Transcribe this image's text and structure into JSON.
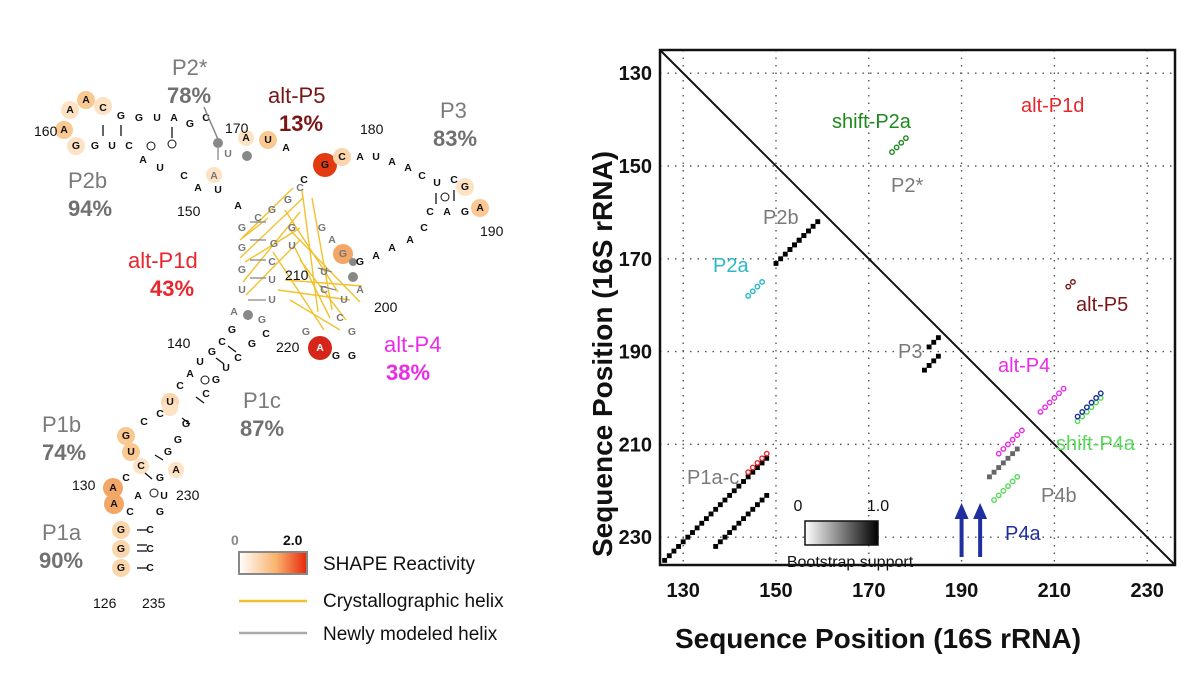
{
  "colors": {
    "gray_label": "#7a7a7a",
    "dark_gray_pct": "#707070",
    "alt_p1d": "#e8262b",
    "alt_p5": "#7a1515",
    "alt_p4": "#ea2be8",
    "shift_p2a": "#1d8a1d",
    "p2a": "#28b8c8",
    "shift_p4a": "#5ad85a",
    "p4a": "#1f2fa0",
    "crystal_helix": "#f2c12e",
    "new_helix": "#aaaaaa",
    "shape_low": "#ffffff",
    "shape_high": "#e8260b"
  },
  "structure": {
    "helix_labels": [
      {
        "name": "P2*",
        "pct": "78%",
        "color": "#7a7a7a"
      },
      {
        "name": "alt-P5",
        "pct": "13%",
        "color": "#7a1515"
      },
      {
        "name": "P3",
        "pct": "83%",
        "color": "#7a7a7a"
      },
      {
        "name": "P2b",
        "pct": "94%",
        "color": "#7a7a7a"
      },
      {
        "name": "alt-P1d",
        "pct": "43%",
        "color": "#e8262b"
      },
      {
        "name": "alt-P4",
        "pct": "38%",
        "color": "#ea2be8"
      },
      {
        "name": "P1c",
        "pct": "87%",
        "color": "#7a7a7a"
      },
      {
        "name": "P1b",
        "pct": "74%",
        "color": "#7a7a7a"
      },
      {
        "name": "P1a",
        "pct": "90%",
        "color": "#7a7a7a"
      }
    ],
    "position_numbers": [
      "160",
      "170",
      "180",
      "150",
      "190",
      "210",
      "200",
      "140",
      "220",
      "130",
      "230",
      "126",
      "235"
    ]
  },
  "legend": {
    "scale_min": "0",
    "scale_max": "2.0",
    "shape_label": "SHAPE Reactivity",
    "crystal_label": "Crystallographic helix",
    "new_label": "Newly modeled helix"
  },
  "chart_data": {
    "type": "heatmap",
    "title": "",
    "xlabel": "Sequence Position (16S rRNA)",
    "ylabel": "Sequence Position (16S rRNA)",
    "x_ticks": [
      "130",
      "150",
      "170",
      "190",
      "210",
      "230"
    ],
    "y_ticks": [
      "130",
      "150",
      "170",
      "190",
      "210",
      "230"
    ],
    "xlim": [
      125,
      236
    ],
    "ylim": [
      125,
      236
    ],
    "y_inverted": true,
    "grid": true,
    "colorbar": {
      "label": "Bootstrap support",
      "min": "0",
      "max": "1.0"
    },
    "helices": [
      {
        "name": "P1a-c",
        "i_start": 126,
        "j_start": 235,
        "length": 23,
        "support": 1.0,
        "side": "lower",
        "label_color": "#7a7a7a"
      },
      {
        "name": "P2b",
        "i_start": 150,
        "j_start": 171,
        "length": 10,
        "support": 1.0,
        "side": "lower",
        "label_color": "#7a7a7a"
      },
      {
        "name": "P2*",
        "i_start": 164,
        "j_start": 157,
        "length": 5,
        "support": 1.0,
        "side": "upper",
        "label_color": "#7a7a7a"
      },
      {
        "name": "P3",
        "i_start": 182,
        "j_start": 194,
        "length": 4,
        "support": 1.0,
        "side": "lower",
        "label_color": "#7a7a7a"
      },
      {
        "name": "P3-upper",
        "i_start": 187,
        "j_start": 185,
        "length": 3,
        "support": 1.0,
        "side": "upper",
        "label_color": ""
      },
      {
        "name": "P4b",
        "i_start": 196,
        "j_start": 217,
        "length": 7,
        "support": 0.6,
        "side": "lower",
        "label_color": "#7a7a7a"
      },
      {
        "name": "alt-P1d",
        "i_start": 221,
        "j_start": 148,
        "length": 12,
        "support": 1.0,
        "side": "upper",
        "label_color": "#e8262b"
      }
    ],
    "circled_helices": [
      {
        "name": "shift-P2a",
        "from": [
          175,
          147
        ],
        "to": [
          178,
          144
        ],
        "color": "#1d8a1d"
      },
      {
        "name": "P2a",
        "from": [
          144,
          178
        ],
        "to": [
          147,
          175
        ],
        "color": "#28b8c8"
      },
      {
        "name": "alt-P5",
        "from": [
          213,
          176
        ],
        "to": [
          214,
          175
        ],
        "color": "#7a1515"
      },
      {
        "name": "alt-P4",
        "from": [
          198,
          212
        ],
        "to": [
          203,
          207
        ],
        "color": "#ea2be8"
      },
      {
        "name": "alt-P4-upper",
        "from": [
          207,
          203
        ],
        "to": [
          212,
          198
        ],
        "color": "#ea2be8"
      },
      {
        "name": "shift-P4a",
        "from": [
          215,
          205
        ],
        "to": [
          220,
          200
        ],
        "color": "#5ad85a"
      },
      {
        "name": "shift-P4a-lower",
        "from": [
          197,
          222
        ],
        "to": [
          202,
          217
        ],
        "color": "#5ad85a"
      },
      {
        "name": "P4a",
        "from": [
          215,
          204
        ],
        "to": [
          220,
          199
        ],
        "color": "#1f2fa0"
      },
      {
        "name": "alt-P1d-lower",
        "from": [
          144,
          216
        ],
        "to": [
          148,
          212
        ],
        "color": "#e8262b"
      }
    ],
    "annotations": [
      {
        "text": "shift-P2a",
        "color": "#1d8a1d"
      },
      {
        "text": "alt-P1d",
        "color": "#e8262b"
      },
      {
        "text": "P2*",
        "color": "#7a7a7a"
      },
      {
        "text": "P2b",
        "color": "#7a7a7a"
      },
      {
        "text": "P2a",
        "color": "#28b8c8"
      },
      {
        "text": "alt-P5",
        "color": "#7a1515"
      },
      {
        "text": "P3",
        "color": "#7a7a7a"
      },
      {
        "text": "alt-P4",
        "color": "#ea2be8"
      },
      {
        "text": "shift-P4a",
        "color": "#5ad85a"
      },
      {
        "text": "P1a-c",
        "color": "#7a7a7a"
      },
      {
        "text": "P4b",
        "color": "#7a7a7a"
      },
      {
        "text": "P4a",
        "color": "#1f2fa0"
      }
    ],
    "arrows_at_positions": [
      190,
      194
    ]
  }
}
